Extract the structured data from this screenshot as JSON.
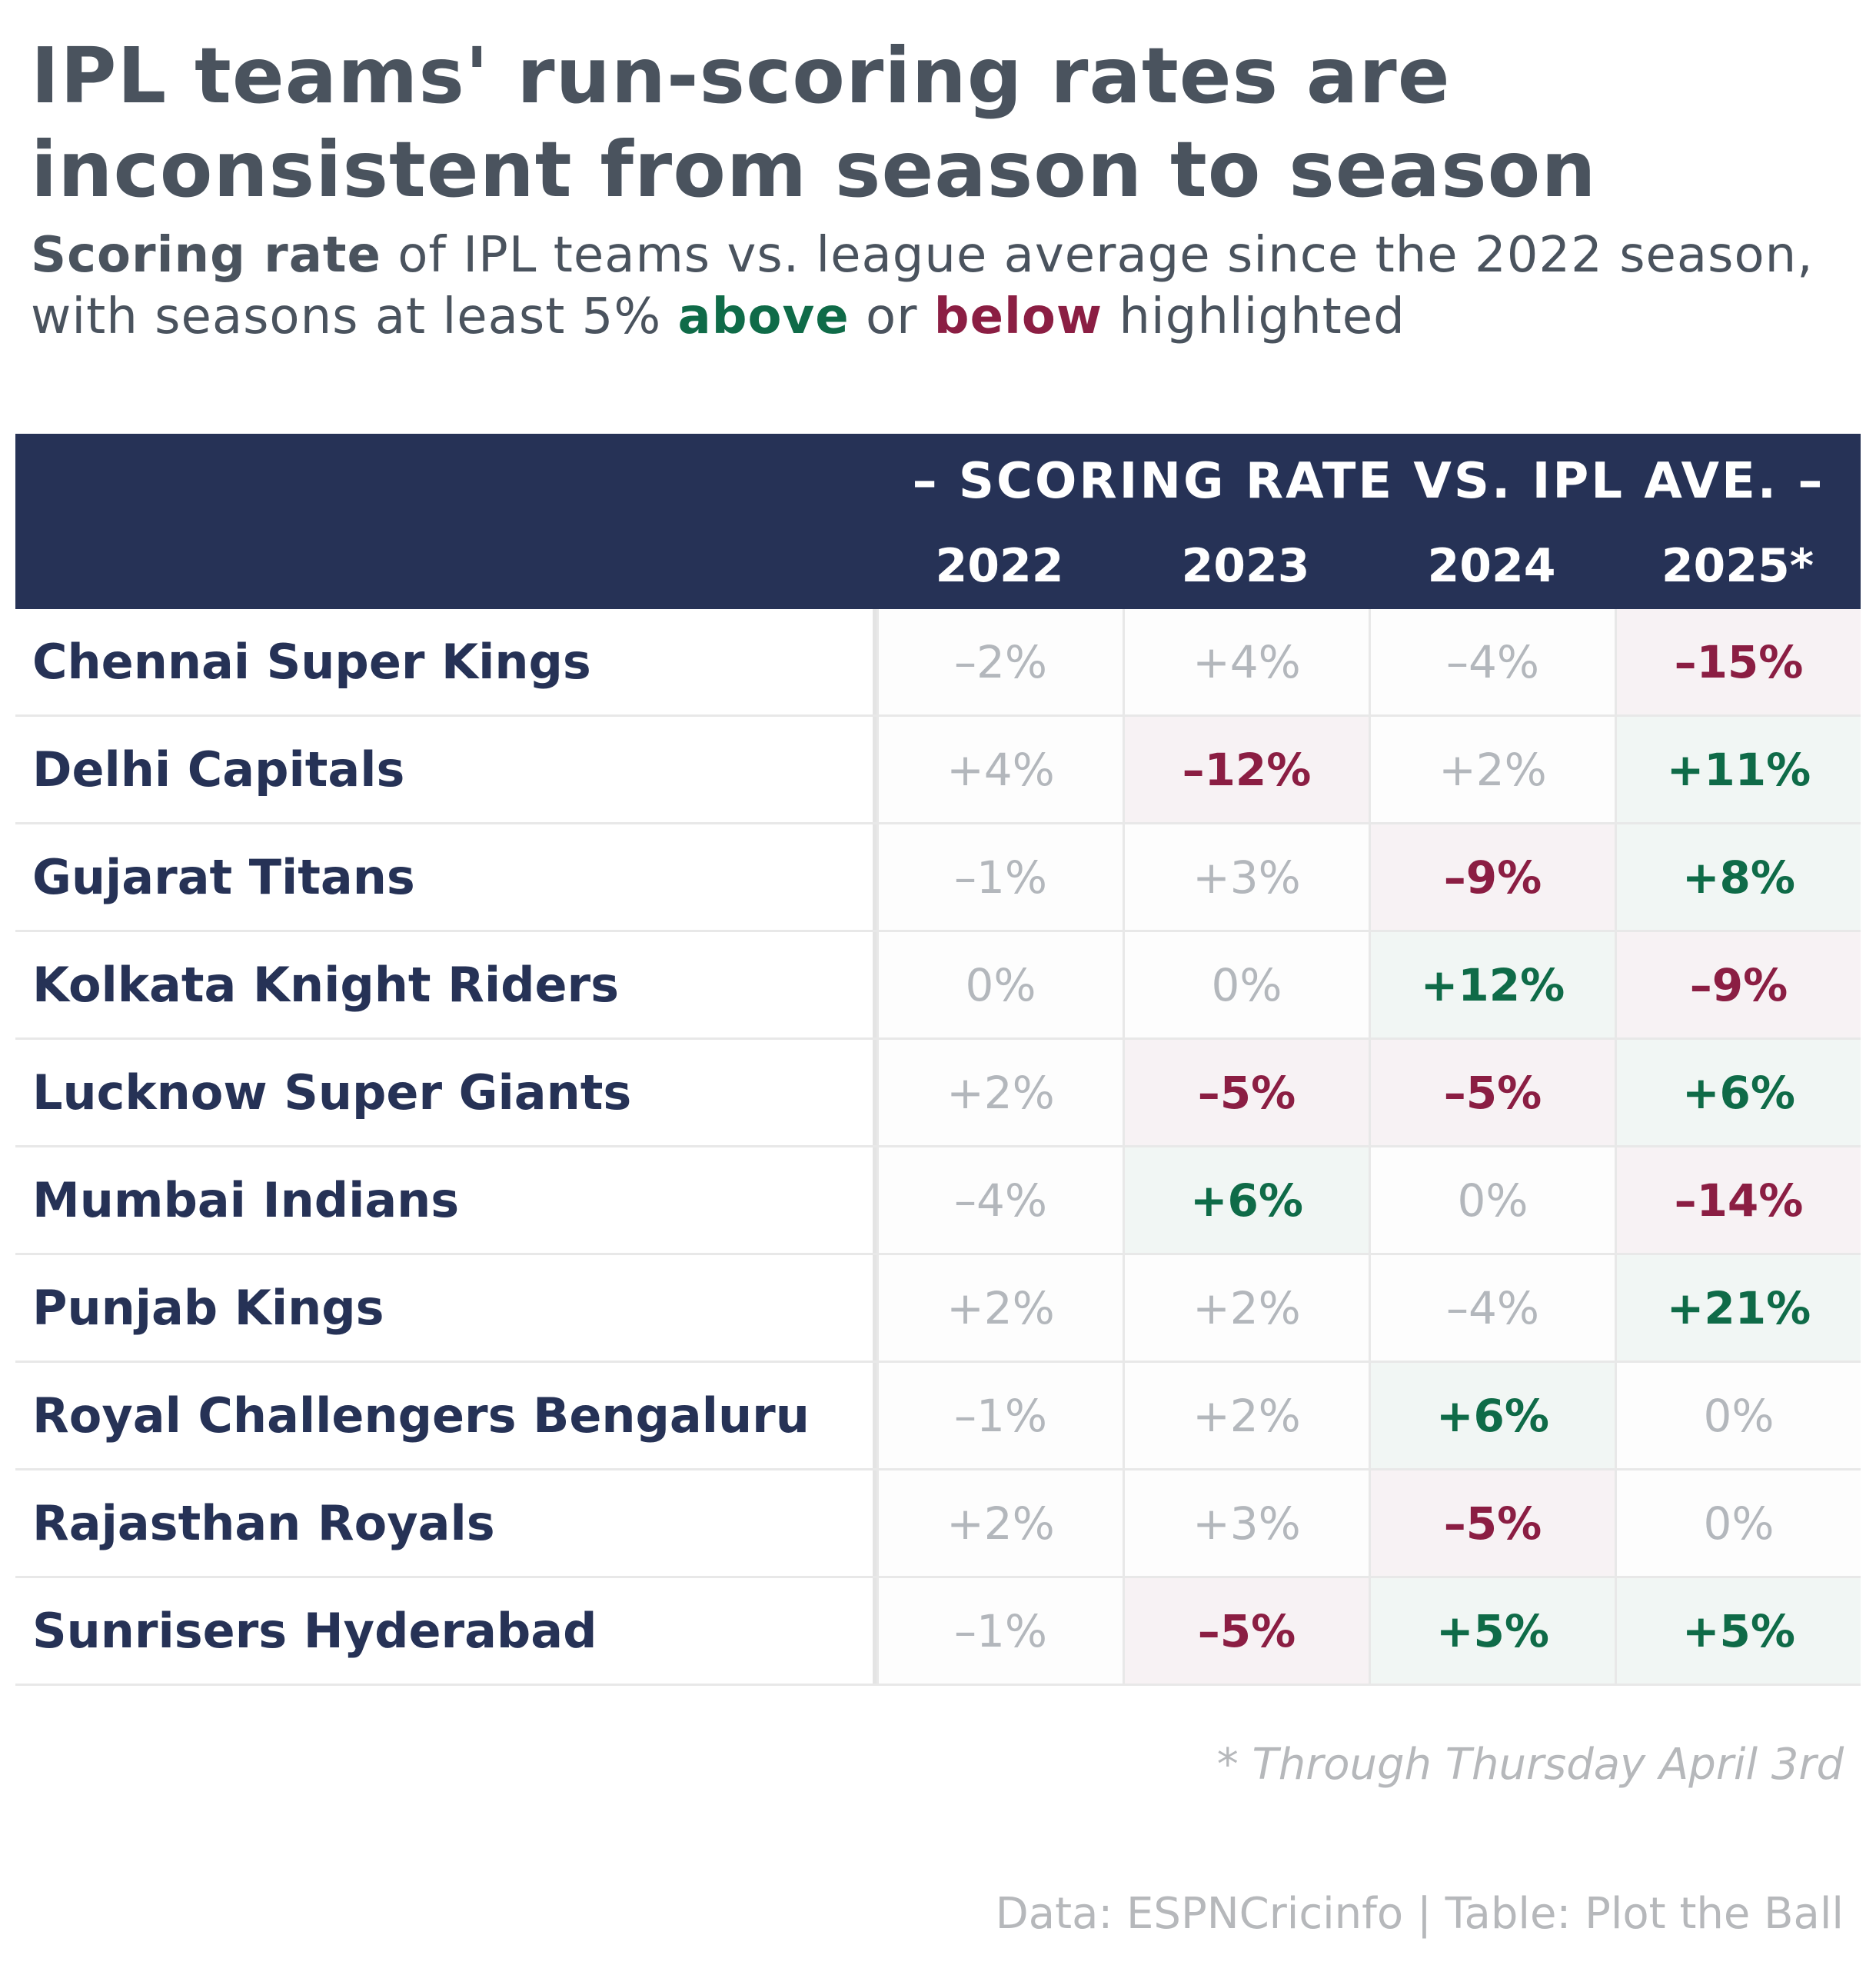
{
  "title": "IPL teams' run-scoring rates are inconsistent from season to season",
  "subtitle": {
    "lead": "Scoring rate",
    "part1": " of IPL teams vs. league average since the 2022 season, with seasons at least 5% ",
    "above": "above",
    "part2": " or ",
    "below": "below",
    "part3": " highlighted"
  },
  "colors": {
    "header_bg": "#263256",
    "above": "#0f6b48",
    "below": "#8b1e43",
    "neutral_text": "#b3b7bc",
    "above_bg": "#f1f6f4",
    "below_bg": "#f7f2f4"
  },
  "chart_data": {
    "type": "table",
    "column_group": "– SCORING RATE VS. IPL AVE. –",
    "columns": [
      "2022",
      "2023",
      "2024",
      "2025*"
    ],
    "highlight_threshold_pct": 5,
    "rows": [
      {
        "team": "Chennai Super Kings",
        "values": [
          "–2%",
          "+4%",
          "–4%",
          "–15%"
        ],
        "flags": [
          "none",
          "none",
          "none",
          "below"
        ]
      },
      {
        "team": "Delhi Capitals",
        "values": [
          "+4%",
          "–12%",
          "+2%",
          "+11%"
        ],
        "flags": [
          "none",
          "below",
          "none",
          "above"
        ]
      },
      {
        "team": "Gujarat Titans",
        "values": [
          "–1%",
          "+3%",
          "–9%",
          "+8%"
        ],
        "flags": [
          "none",
          "none",
          "below",
          "above"
        ]
      },
      {
        "team": "Kolkata Knight Riders",
        "values": [
          "0%",
          "0%",
          "+12%",
          "–9%"
        ],
        "flags": [
          "none",
          "none",
          "above",
          "below"
        ]
      },
      {
        "team": "Lucknow Super Giants",
        "values": [
          "+2%",
          "–5%",
          "–5%",
          "+6%"
        ],
        "flags": [
          "none",
          "below",
          "below",
          "above"
        ]
      },
      {
        "team": "Mumbai Indians",
        "values": [
          "–4%",
          "+6%",
          "0%",
          "–14%"
        ],
        "flags": [
          "none",
          "above",
          "none",
          "below"
        ]
      },
      {
        "team": "Punjab Kings",
        "values": [
          "+2%",
          "+2%",
          "–4%",
          "+21%"
        ],
        "flags": [
          "none",
          "none",
          "none",
          "above"
        ]
      },
      {
        "team": "Royal Challengers Bengaluru",
        "values": [
          "–1%",
          "+2%",
          "+6%",
          "0%"
        ],
        "flags": [
          "none",
          "none",
          "above",
          "none"
        ]
      },
      {
        "team": "Rajasthan Royals",
        "values": [
          "+2%",
          "+3%",
          "–5%",
          "0%"
        ],
        "flags": [
          "none",
          "none",
          "below",
          "none"
        ]
      },
      {
        "team": "Sunrisers Hyderabad",
        "values": [
          "–1%",
          "–5%",
          "+5%",
          "+5%"
        ],
        "flags": [
          "none",
          "below",
          "above",
          "above"
        ]
      }
    ]
  },
  "footnote": "* Through Thursday April 3rd",
  "source": "Data: ESPNCricinfo | Table: Plot the Ball"
}
